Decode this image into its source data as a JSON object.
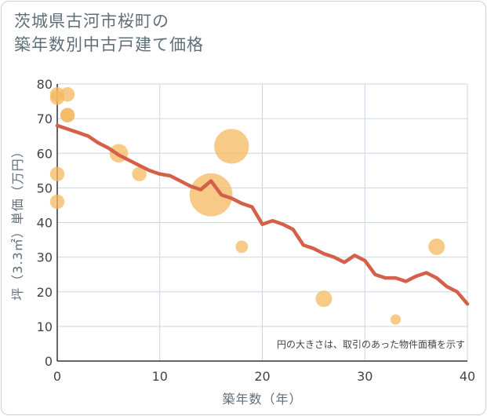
{
  "title": {
    "line1": "茨城県古河市桜町の",
    "line2": "築年数別中古戸建て価格"
  },
  "colors": {
    "bubble": "#f4b860",
    "line": "#d4604a",
    "grid": "#c9d6e3",
    "text": "#5f6f78"
  },
  "chart_data": {
    "type": "scatter",
    "xlabel": "築年数（年）",
    "ylabel": "坪（3.3㎡）単価（万円）",
    "xlim": [
      0,
      40
    ],
    "ylim": [
      0,
      80
    ],
    "xticks": [
      0,
      10,
      20,
      30,
      40
    ],
    "yticks": [
      0,
      10,
      20,
      30,
      40,
      50,
      60,
      70,
      80
    ],
    "grid": true,
    "note": "円の大きさは、取引のあった物件面積を示す",
    "bubbles": [
      {
        "x": 0,
        "y": 77,
        "size": 2
      },
      {
        "x": 0,
        "y": 76,
        "size": 2
      },
      {
        "x": 1,
        "y": 77,
        "size": 2
      },
      {
        "x": 1,
        "y": 71,
        "size": 2
      },
      {
        "x": 1,
        "y": 71,
        "size": 2
      },
      {
        "x": 0,
        "y": 54,
        "size": 2
      },
      {
        "x": 0,
        "y": 46,
        "size": 2
      },
      {
        "x": 6,
        "y": 60,
        "size": 3
      },
      {
        "x": 8,
        "y": 54,
        "size": 2
      },
      {
        "x": 15,
        "y": 48,
        "size": 9
      },
      {
        "x": 17,
        "y": 62,
        "size": 7
      },
      {
        "x": 18,
        "y": 33,
        "size": 1.5
      },
      {
        "x": 26,
        "y": 18,
        "size": 2.5
      },
      {
        "x": 33,
        "y": 12,
        "size": 1
      },
      {
        "x": 37,
        "y": 33,
        "size": 2.5
      }
    ],
    "series": [
      {
        "name": "trend",
        "x": [
          0,
          1,
          2,
          3,
          4,
          5,
          6,
          7,
          8,
          9,
          10,
          11,
          12,
          13,
          14,
          15,
          16,
          17,
          18,
          19,
          20,
          21,
          22,
          23,
          24,
          25,
          26,
          27,
          28,
          29,
          30,
          31,
          32,
          33,
          34,
          35,
          36,
          37,
          38,
          39,
          40
        ],
        "y": [
          68,
          67,
          66,
          65,
          63,
          61.5,
          59.5,
          58,
          56.5,
          55,
          54,
          53.5,
          52,
          50.5,
          49.5,
          52,
          48,
          47,
          45.5,
          44.5,
          39.5,
          40.5,
          39.5,
          38,
          33.5,
          32.5,
          31,
          30,
          28.5,
          30.5,
          29,
          25,
          24,
          24,
          23,
          24.5,
          25.5,
          24,
          21.5,
          20,
          16.5
        ]
      }
    ]
  }
}
